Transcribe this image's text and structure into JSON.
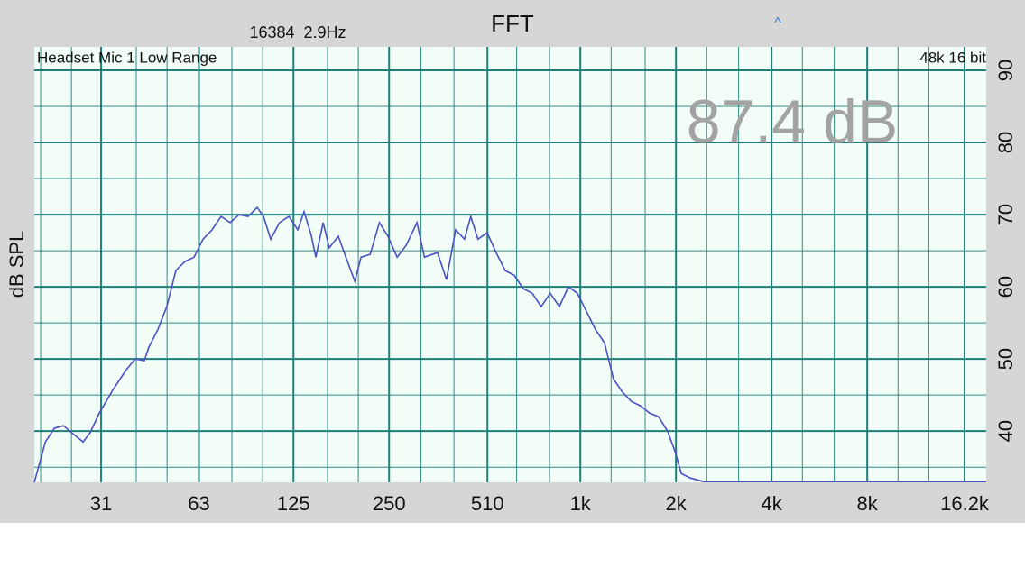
{
  "chart_data": {
    "type": "line",
    "title": "FFT",
    "subtitle": "16384  2.9Hz",
    "marker": "^",
    "input_label": "Headset Mic 1 Low Range",
    "format_label": "48k 16 bit",
    "level_readout": "87.4 dB",
    "y_label": "dB SPL",
    "x_scale": "log",
    "grid": true,
    "xlim": [
      19.1,
      18950
    ],
    "ylim": [
      32.9,
      93.25
    ],
    "xticks": [
      31,
      63,
      125,
      250,
      510,
      {
        "value": 1000,
        "label": "1k"
      },
      {
        "value": 2000,
        "label": "2k"
      },
      {
        "value": 4000,
        "label": "4k"
      },
      {
        "value": 8000,
        "label": "8k"
      },
      {
        "value": 16200,
        "label": "16.2k"
      }
    ],
    "x_minor_ticks": [
      20,
      25,
      40,
      50,
      80,
      100,
      160,
      200,
      315,
      400,
      630,
      800,
      1250,
      1600,
      2500,
      3150,
      5000,
      6300,
      10000,
      12500
    ],
    "yticks": [
      40,
      50,
      60,
      70,
      80,
      90
    ],
    "y_minor_ticks": [
      35,
      45,
      55,
      65,
      75,
      85
    ],
    "x": [
      19.1,
      20.7,
      22.1,
      23.6,
      25.1,
      27.2,
      28.6,
      30.6,
      33.8,
      37.2,
      39.7,
      42.4,
      43.8,
      46.8,
      49.9,
      53.3,
      56.9,
      60.8,
      64.9,
      69.3,
      74.0,
      79.0,
      84.3,
      90.0,
      96.1,
      100.6,
      106,
      113,
      121,
      129,
      135,
      142,
      147,
      155,
      162,
      173,
      185,
      195,
      204,
      218,
      233,
      248,
      265,
      283,
      306,
      323,
      355,
      379,
      405,
      432,
      452,
      476,
      509,
      543,
      580,
      619,
      661,
      706,
      753,
      804,
      859,
      917,
      979,
      1045,
      1115,
      1191,
      1271,
      1357,
      1449,
      1547,
      1651,
      1763,
      1882,
      1984,
      2080,
      2220,
      2443,
      18950
    ],
    "series": [
      {
        "color": "#4b50c4",
        "values": [
          32.9,
          38.5,
          40.4,
          40.75,
          39.75,
          38.5,
          39.75,
          42.5,
          45.75,
          48.5,
          50,
          49.75,
          51.6,
          54.1,
          57.25,
          62.25,
          63.5,
          64.1,
          66.6,
          67.9,
          69.75,
          68.9,
          70,
          69.75,
          71,
          69.75,
          66.6,
          68.9,
          69.75,
          67.9,
          70.4,
          67.25,
          64.1,
          68.9,
          65.4,
          67,
          63.5,
          60.75,
          64.1,
          64.5,
          68.9,
          67,
          64.1,
          65.75,
          68.9,
          64.1,
          64.75,
          61,
          67.9,
          66.6,
          69.75,
          66.6,
          67.5,
          64.75,
          62.25,
          61.6,
          59.75,
          59.1,
          57.25,
          59.1,
          57.25,
          60,
          59.1,
          56.6,
          54.1,
          52.25,
          47.25,
          45.4,
          44.1,
          43.5,
          42.5,
          42,
          40,
          37.25,
          34.1,
          33.5,
          33,
          33
        ]
      }
    ]
  }
}
